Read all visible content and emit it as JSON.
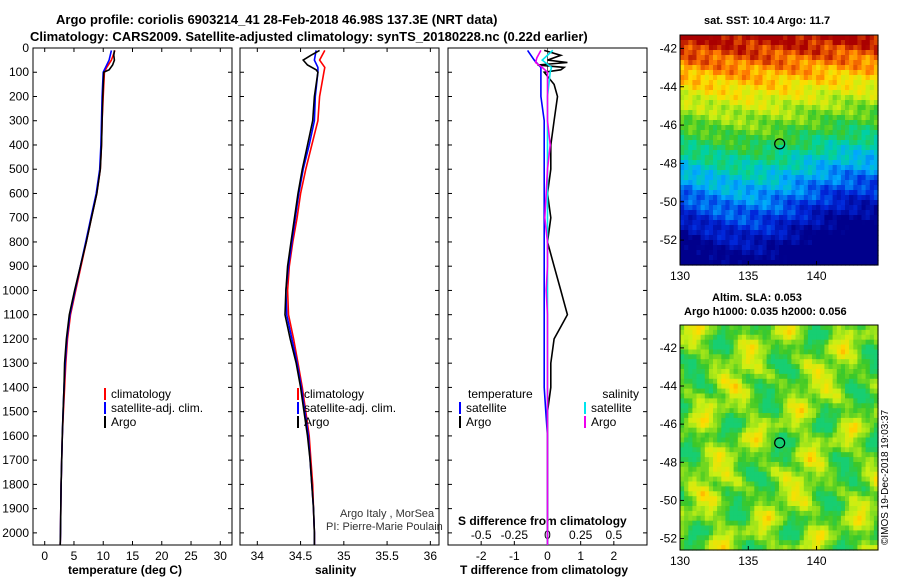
{
  "header": {
    "line1": "Argo profile: coriolis 6903214_41 28-Feb-2018 46.98S 137.3E (NRT data)",
    "line2": "Climatology: CARS2009. Satellite-adjusted climatology: synTS_20180228.nc (0.22d earlier)"
  },
  "credits": {
    "line1": "Argo Italy , MorSea",
    "line2": "PI: Pierre-Marie Poulain",
    "imos": "©IMOS 19-Dec-2018 19:03:37"
  },
  "colors": {
    "climatology": "#ff0000",
    "satellite_adj": "#0000ff",
    "argo": "#000000",
    "s_satellite": "#00e5ee",
    "s_argo": "#ee00ee"
  },
  "map1": {
    "title": "sat. SST: 10.4 Argo: 11.7",
    "xticks": [
      "130",
      "135",
      "140"
    ],
    "yticks": [
      "-42",
      "-44",
      "-46",
      "-48",
      "-50",
      "-52"
    ],
    "argo_lon": 137.3,
    "argo_lat": -46.98,
    "lon_range": [
      130,
      144.5
    ],
    "lat_range": [
      -53.3,
      -41.3
    ]
  },
  "map2": {
    "title1": "Altim. SLA: 0.053",
    "title2": "Argo h1000: 0.035 h2000: 0.056",
    "xticks": [
      "130",
      "135",
      "140"
    ],
    "yticks": [
      "-42",
      "-44",
      "-46",
      "-48",
      "-50",
      "-52"
    ],
    "argo_lon": 137.3,
    "argo_lat": -46.98,
    "lon_range": [
      130,
      144.5
    ],
    "lat_range": [
      -52.6,
      -40.8
    ]
  },
  "chart_data": [
    {
      "type": "line",
      "xlabel": "temperature (deg C)",
      "xlim": [
        -2,
        32
      ],
      "ylim": [
        0,
        2050
      ],
      "y_reversed": true,
      "xticks": [
        "0",
        "5",
        "10",
        "15",
        "20",
        "25",
        "30"
      ],
      "yticks": [
        "0",
        "100",
        "200",
        "300",
        "400",
        "500",
        "600",
        "700",
        "800",
        "900",
        "1000",
        "1100",
        "1200",
        "1300",
        "1400",
        "1500",
        "1600",
        "1700",
        "1800",
        "1900",
        "2000"
      ],
      "legend": [
        "climatology",
        "satellite-adj. clim.",
        "Argo"
      ],
      "series": [
        {
          "name": "climatology",
          "y": [
            10,
            50,
            80,
            100,
            200,
            300,
            400,
            500,
            600,
            700,
            800,
            900,
            1000,
            1100,
            1200,
            1300,
            1400,
            1500,
            1600,
            1700,
            1800,
            1900,
            2000,
            2050
          ],
          "values": [
            12.0,
            11.4,
            10.6,
            10.2,
            10.0,
            9.8,
            9.7,
            9.5,
            8.9,
            8.0,
            7.1,
            6.2,
            5.3,
            4.4,
            3.9,
            3.6,
            3.4,
            3.2,
            3.0,
            2.9,
            2.8,
            2.75,
            2.7,
            2.65
          ]
        },
        {
          "name": "satellite-adj. clim.",
          "y": [
            10,
            50,
            80,
            100,
            200,
            300,
            400,
            500,
            600,
            700,
            800,
            900,
            1000,
            1100,
            1200,
            1300,
            1400,
            1500,
            1600,
            1700,
            1800,
            1900,
            2000,
            2050
          ],
          "values": [
            11.4,
            11.0,
            10.4,
            10.0,
            9.8,
            9.7,
            9.6,
            9.4,
            8.8,
            7.9,
            7.0,
            6.1,
            5.2,
            4.3,
            3.8,
            3.5,
            3.3,
            3.15,
            3.0,
            2.9,
            2.8,
            2.75,
            2.7,
            2.65
          ]
        },
        {
          "name": "Argo",
          "y": [
            10,
            30,
            50,
            70,
            90,
            100,
            200,
            300,
            400,
            500,
            600,
            700,
            800,
            900,
            1000,
            1100,
            1200,
            1300,
            1400,
            1500,
            1600,
            1700,
            1800,
            1900,
            2000,
            2050
          ],
          "values": [
            11.9,
            11.8,
            11.9,
            11.6,
            11.0,
            10.1,
            9.9,
            9.8,
            9.7,
            9.5,
            8.9,
            8.0,
            7.1,
            6.1,
            5.1,
            4.2,
            3.7,
            3.4,
            3.3,
            3.15,
            3.0,
            2.9,
            2.8,
            2.75,
            2.7,
            2.65
          ]
        }
      ]
    },
    {
      "type": "line",
      "xlabel": "salinity",
      "xlim": [
        33.8,
        36.1
      ],
      "ylim": [
        0,
        2050
      ],
      "y_reversed": true,
      "xticks": [
        "34",
        "34.5",
        "35",
        "35.5",
        "36"
      ],
      "legend": [
        "climatology",
        "satellite-adj. clim.",
        "Argo"
      ],
      "series": [
        {
          "name": "climatology",
          "y": [
            10,
            50,
            80,
            100,
            200,
            300,
            400,
            500,
            600,
            700,
            800,
            900,
            1000,
            1100,
            1200,
            1300,
            1400,
            1500,
            1600,
            1700,
            1800,
            1900,
            2000,
            2050
          ],
          "values": [
            34.78,
            34.72,
            34.78,
            34.77,
            34.72,
            34.7,
            34.63,
            34.56,
            34.5,
            34.46,
            34.41,
            34.37,
            34.35,
            34.36,
            34.42,
            34.47,
            34.52,
            34.56,
            34.6,
            34.62,
            34.64,
            34.65,
            34.66,
            34.66
          ]
        },
        {
          "name": "satellite-adj. clim.",
          "y": [
            10,
            50,
            80,
            100,
            200,
            300,
            400,
            500,
            600,
            700,
            800,
            900,
            1000,
            1100,
            1200,
            1300,
            1400,
            1500,
            1600,
            1700,
            1800,
            1900,
            2000,
            2050
          ],
          "values": [
            34.68,
            34.66,
            34.7,
            34.7,
            34.67,
            34.66,
            34.6,
            34.53,
            34.48,
            34.44,
            34.4,
            34.36,
            34.33,
            34.34,
            34.4,
            34.46,
            34.51,
            34.55,
            34.59,
            34.61,
            34.63,
            34.65,
            34.66,
            34.66
          ]
        },
        {
          "name": "Argo",
          "y": [
            10,
            30,
            50,
            70,
            90,
            100,
            200,
            300,
            400,
            500,
            600,
            700,
            800,
            900,
            1000,
            1100,
            1200,
            1300,
            1400,
            1500,
            1600,
            1700,
            1800,
            1900,
            2000,
            2050
          ],
          "values": [
            34.72,
            34.62,
            34.53,
            34.58,
            34.68,
            34.7,
            34.66,
            34.64,
            34.58,
            34.52,
            34.47,
            34.43,
            34.39,
            34.35,
            34.33,
            34.32,
            34.38,
            34.45,
            34.5,
            34.54,
            34.58,
            34.61,
            34.63,
            34.65,
            34.66,
            34.66
          ]
        }
      ]
    },
    {
      "type": "line",
      "xlabel": "T difference from climatology",
      "xlim": [
        -3,
        3
      ],
      "ylim": [
        0,
        2050
      ],
      "y_reversed": true,
      "xticks": [
        "-2",
        "-1",
        "0",
        "1",
        "2"
      ],
      "x2label": "S difference from climatology",
      "x2ticks": [
        "-0.5",
        "-0.25",
        "0",
        "0.25",
        "0.5"
      ],
      "legend_temperature": [
        "temperature",
        "satellite",
        "Argo"
      ],
      "legend_salinity": [
        "salinity",
        "satellite",
        "Argo"
      ],
      "series": [
        {
          "name": "satellite",
          "y": [
            10,
            50,
            80,
            100,
            200,
            300,
            400,
            500,
            600,
            700,
            800,
            900,
            1000,
            1100,
            1200,
            1300,
            1400,
            1500,
            1600,
            1700,
            1800,
            1900,
            2000,
            2050
          ],
          "values": [
            -0.6,
            -0.4,
            -0.2,
            -0.2,
            -0.2,
            -0.1,
            -0.1,
            -0.1,
            -0.1,
            -0.1,
            -0.1,
            -0.1,
            -0.1,
            -0.1,
            -0.1,
            -0.1,
            -0.1,
            -0.05,
            0,
            0,
            0,
            0,
            0,
            0
          ]
        },
        {
          "name": "Argo",
          "y": [
            10,
            30,
            50,
            60,
            70,
            80,
            90,
            100,
            150,
            200,
            300,
            400,
            500,
            600,
            700,
            800,
            900,
            1000,
            1050,
            1100,
            1150,
            1200,
            1300,
            1400,
            1500,
            1600,
            1700,
            1800,
            1900,
            2000,
            2050
          ],
          "values": [
            -0.1,
            0.4,
            0.0,
            0.6,
            -0.3,
            0.5,
            0.4,
            -0.1,
            0.2,
            0.3,
            0.2,
            0.1,
            0.1,
            0.0,
            0.1,
            0.0,
            0.2,
            0.4,
            0.5,
            0.6,
            0.4,
            0.2,
            0.1,
            0.1,
            0.0,
            0.0,
            0.0,
            0.0,
            0.0,
            0.0,
            0.0
          ]
        },
        {
          "name": "salinity satellite",
          "y": [
            10,
            50,
            80,
            100,
            200,
            300,
            400,
            500,
            600,
            700,
            800,
            900,
            1000,
            1100,
            1200,
            1300,
            1400,
            1500,
            1600,
            1700,
            1800,
            1900,
            2000,
            2050
          ],
          "values": [
            0.04,
            -0.04,
            0.03,
            0.02,
            0.0,
            0.0,
            0.0,
            0.0,
            0.0,
            0.0,
            0.0,
            0.0,
            0.0,
            0.0,
            0.0,
            0.0,
            0.0,
            0.0,
            0.0,
            0.0,
            0.0,
            0.0,
            0.0,
            0.0
          ]
        },
        {
          "name": "salinity Argo",
          "y": [
            10,
            40,
            60,
            80,
            100,
            200,
            300,
            400,
            500,
            600,
            700,
            800,
            900,
            1000,
            1100,
            1200,
            1300,
            1400,
            1500,
            1600,
            1700,
            1800,
            1900,
            2000,
            2050
          ],
          "values": [
            -0.05,
            -0.08,
            -0.09,
            -0.04,
            0.0,
            0.0,
            0.0,
            0.02,
            0.0,
            -0.01,
            -0.02,
            0.0,
            0.0,
            -0.01,
            0.0,
            0.0,
            0.0,
            0.0,
            0.0,
            0.0,
            0.0,
            0.0,
            0.0,
            0.0,
            0.0
          ]
        }
      ]
    }
  ]
}
